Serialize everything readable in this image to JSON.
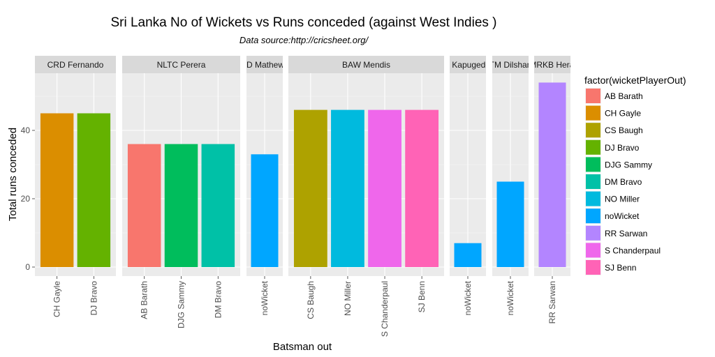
{
  "chart_data": {
    "type": "bar",
    "title": "Sri Lanka No of Wickets vs Runs conceded (against West Indies )",
    "subtitle": "Data source:http://cricsheet.org/",
    "xlabel": "Batsman out",
    "ylabel": "Total runs conceded",
    "ylim": [
      0,
      57
    ],
    "yticks": [
      0,
      20,
      40
    ],
    "grid": true,
    "legend": {
      "title": "factor(wicketPlayerOut)",
      "placement": "right",
      "entries": [
        {
          "label": "AB Barath",
          "color": "#F8766D"
        },
        {
          "label": "CH Gayle",
          "color": "#DB8E00"
        },
        {
          "label": "CS Baugh",
          "color": "#AEA200"
        },
        {
          "label": "DJ Bravo",
          "color": "#64B200"
        },
        {
          "label": "DJG Sammy",
          "color": "#00BD5C"
        },
        {
          "label": "DM Bravo",
          "color": "#00C1A7"
        },
        {
          "label": "NO Miller",
          "color": "#00BADE"
        },
        {
          "label": "noWicket",
          "color": "#00A6FF"
        },
        {
          "label": "RR Sarwan",
          "color": "#B385FF"
        },
        {
          "label": "S Chanderpaul",
          "color": "#EF67EB"
        },
        {
          "label": "SJ Benn",
          "color": "#FF63B6"
        }
      ]
    },
    "facets": [
      {
        "bowler": "CRD Fernando",
        "bars": [
          {
            "batsman": "CH Gayle",
            "value": 45
          },
          {
            "batsman": "DJ Bravo",
            "value": 45
          }
        ]
      },
      {
        "bowler": "NLTC Perera",
        "bars": [
          {
            "batsman": "AB Barath",
            "value": 36
          },
          {
            "batsman": "DJG Sammy",
            "value": 36
          },
          {
            "batsman": "DM Bravo",
            "value": 36
          }
        ]
      },
      {
        "bowler": "AD Mathews",
        "bars": [
          {
            "batsman": "noWicket",
            "value": 33
          }
        ]
      },
      {
        "bowler": "BAW Mendis",
        "bars": [
          {
            "batsman": "CS Baugh",
            "value": 46
          },
          {
            "batsman": "NO Miller",
            "value": 46
          },
          {
            "batsman": "S Chanderpaul",
            "value": 46
          },
          {
            "batsman": "SJ Benn",
            "value": 46
          }
        ]
      },
      {
        "bowler": "CK Kapugedera",
        "bars": [
          {
            "batsman": "noWicket",
            "value": 7
          }
        ]
      },
      {
        "bowler": "TM Dilshan",
        "bars": [
          {
            "batsman": "noWicket",
            "value": 25
          }
        ]
      },
      {
        "bowler": "HMRKB Herath",
        "bars": [
          {
            "batsman": "RR Sarwan",
            "value": 54
          }
        ]
      }
    ]
  }
}
